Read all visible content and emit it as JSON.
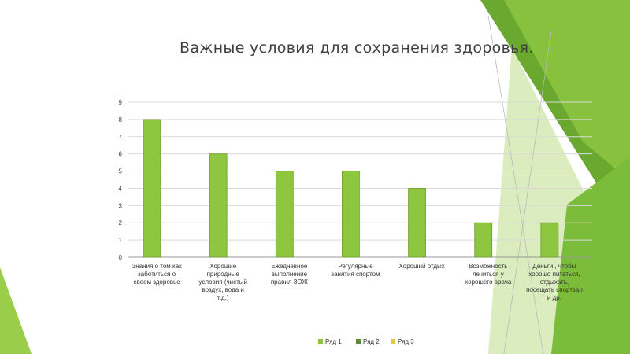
{
  "slide": {
    "title": "Важные условия для сохранения здоровья."
  },
  "colors": {
    "bar": "#8ec63f",
    "bar_stroke": "#6f9e2a",
    "series2": "#5a8c2c",
    "series3": "#e7c44a",
    "axis": "#999999",
    "grid": "#d9d9d9"
  },
  "chart_data": {
    "type": "bar",
    "title": "Важные условия для сохранения здоровья.",
    "categories": [
      [
        "Знания о том как",
        "заботиться о",
        "своем здоровье"
      ],
      [
        "Хорошие",
        "природные",
        "условия (чистый",
        "воздух, вода и",
        "т.д.)"
      ],
      [
        "Ежедневное",
        "выполнение",
        "правил ЗОЖ"
      ],
      [
        "Регулярные",
        "занятия спортом"
      ],
      [
        "Хороший отдых"
      ],
      [
        "Возможность",
        "лечиться у",
        "хорошего врача"
      ],
      [
        "Деньги , чтобы",
        "хорошо питаться,",
        "отдыхать,",
        "посещать спортзал",
        "и др."
      ]
    ],
    "series": [
      {
        "name": "Ряд 1",
        "values": [
          8,
          6,
          5,
          5,
          4,
          2,
          2
        ]
      },
      {
        "name": "Ряд 2",
        "values": [
          0,
          0,
          0,
          0,
          0,
          0,
          0
        ]
      },
      {
        "name": "Ряд 3",
        "values": [
          0,
          0,
          0,
          0,
          0,
          0,
          0
        ]
      }
    ],
    "yticks": [
      0,
      1,
      2,
      3,
      4,
      5,
      6,
      7,
      8,
      9
    ],
    "ylim": [
      0,
      9
    ],
    "grid": true,
    "legend_position": "bottom",
    "xlabel": "",
    "ylabel": ""
  }
}
